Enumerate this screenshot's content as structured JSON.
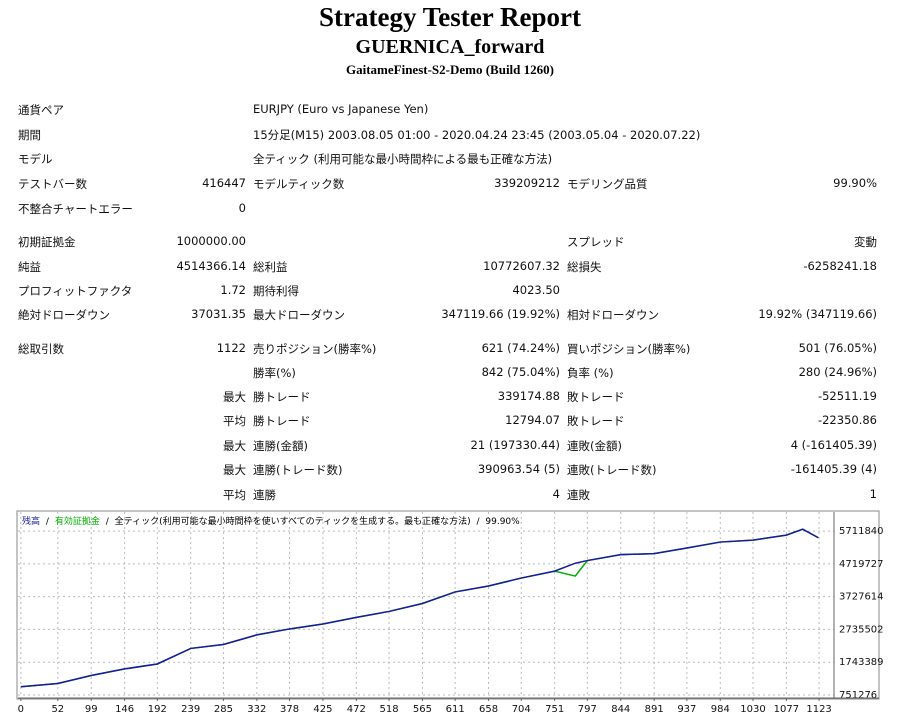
{
  "header": {
    "title": "Strategy Tester Report",
    "subtitle": "GUERNICA_forward",
    "server": "GaitameFinest-S2-Demo (Build 1260)"
  },
  "table": {
    "rows": [
      [
        "通貨ペア",
        null,
        "EURJPY (Euro vs Japanese Yen)"
      ],
      [
        "期間",
        null,
        "15分足(M15) 2003.08.05 01:00 - 2020.04.24 23:45 (2003.05.04 - 2020.07.22)"
      ],
      [
        "モデル",
        null,
        "全ティック (利用可能な最小時間枠による最も正確な方法)"
      ],
      [
        "テストバー数",
        "416447",
        "モデルティック数",
        "339209212",
        "モデリング品質",
        "99.90%"
      ],
      [
        "不整合チャートエラー",
        "0"
      ],
      [
        "初期証拠金",
        "1000000.00",
        null,
        null,
        "スプレッド",
        "変動"
      ],
      [
        "純益",
        "4514366.14",
        "総利益",
        "10772607.32",
        "総損失",
        "-6258241.18"
      ],
      [
        "プロフィットファクタ",
        "1.72",
        "期待利得",
        "4023.50"
      ],
      [
        "絶対ドローダウン",
        "37031.35",
        "最大ドローダウン",
        "347119.66 (19.92%)",
        "相対ドローダウン",
        "19.92% (347119.66)"
      ],
      [
        "総取引数",
        "1122",
        "売りポジション(勝率%)",
        "621 (74.24%)",
        "買いポジション(勝率%)",
        "501 (76.05%)"
      ],
      [
        null,
        null,
        "勝率(%)",
        "842 (75.04%)",
        "負率 (%)",
        "280 (24.96%)"
      ],
      [
        null,
        "最大",
        "勝トレード",
        "339174.88",
        "敗トレード",
        "-52511.19"
      ],
      [
        null,
        "平均",
        "勝トレード",
        "12794.07",
        "敗トレード",
        "-22350.86"
      ],
      [
        null,
        "最大",
        "連勝(金額)",
        "21 (197330.44)",
        "連敗(金額)",
        "4 (-161405.39)"
      ],
      [
        null,
        "最大",
        "連勝(トレード数)",
        "390963.54 (5)",
        "連敗(トレード数)",
        "-161405.39 (4)"
      ],
      [
        null,
        "平均",
        "連勝",
        "4",
        "連敗",
        "1"
      ]
    ]
  },
  "chart_data": {
    "type": "line",
    "separator": "/",
    "model": "全ティック(利用可能な最小時間枠を使いすべてのティックを生成する。最も正確な方法)",
    "quality": "99.90%",
    "x": [
      0,
      52,
      99,
      146,
      192,
      239,
      285,
      332,
      378,
      425,
      472,
      518,
      565,
      611,
      658,
      704,
      751,
      780,
      797,
      844,
      891,
      937,
      984,
      1030,
      1077,
      1100,
      1122
    ],
    "series": [
      {
        "name": "有効証拠金",
        "color": "#00b000",
        "values": [
          1000000,
          1100000,
          1340000,
          1540000,
          1690000,
          2160000,
          2280000,
          2570000,
          2750000,
          2900000,
          3100000,
          3280000,
          3520000,
          3870000,
          4050000,
          4290000,
          4500000,
          4350000,
          4820000,
          5000000,
          5030000,
          5200000,
          5380000,
          5440000,
          5590000,
          5770000,
          5510000
        ]
      },
      {
        "name": "残高",
        "color": "#1a1aa0",
        "values": [
          1000000,
          1100000,
          1340000,
          1540000,
          1690000,
          2160000,
          2280000,
          2570000,
          2750000,
          2900000,
          3100000,
          3280000,
          3520000,
          3870000,
          4050000,
          4290000,
          4500000,
          4740000,
          4820000,
          5000000,
          5030000,
          5200000,
          5380000,
          5440000,
          5590000,
          5770000,
          5510000
        ]
      }
    ],
    "xlim": [
      -4,
      1144
    ],
    "xticks": [
      0,
      52,
      99,
      146,
      192,
      239,
      285,
      332,
      378,
      425,
      472,
      518,
      565,
      611,
      658,
      704,
      751,
      797,
      844,
      891,
      937,
      984,
      1030,
      1077,
      1123
    ],
    "ylim": [
      690000,
      6290000
    ],
    "yticks": [
      751276,
      1743389,
      2735502,
      3727614,
      4719727,
      5711840
    ],
    "grid": true
  }
}
